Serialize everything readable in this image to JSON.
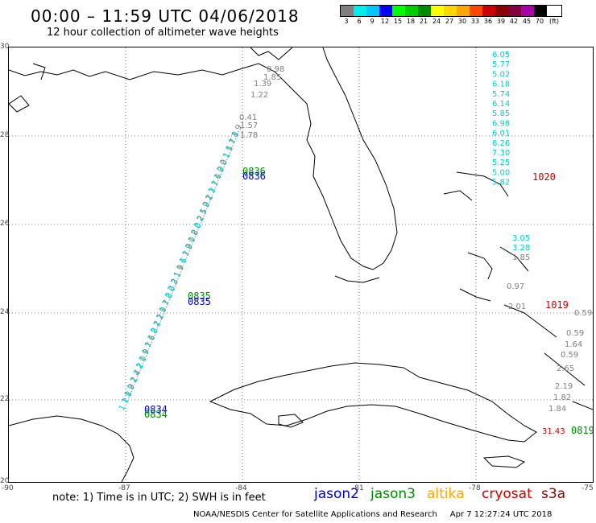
{
  "header": {
    "title": "00:00 – 11:59 UTC 04/06/2018",
    "subtitle": "12 hour collection of altimeter wave heights"
  },
  "legend": {
    "unit": "(ft)",
    "bins": [
      {
        "label": "3",
        "color": "#7f7f7f"
      },
      {
        "label": "6",
        "color": "#00eeee"
      },
      {
        "label": "9",
        "color": "#00c8ff"
      },
      {
        "label": "12",
        "color": "#0000ff"
      },
      {
        "label": "15",
        "color": "#00ff00"
      },
      {
        "label": "18",
        "color": "#00cc00"
      },
      {
        "label": "21",
        "color": "#008b00"
      },
      {
        "label": "24",
        "color": "#ffff00"
      },
      {
        "label": "27",
        "color": "#ffd700"
      },
      {
        "label": "30",
        "color": "#ffa500"
      },
      {
        "label": "33",
        "color": "#ff4500"
      },
      {
        "label": "36",
        "color": "#cc0000"
      },
      {
        "label": "39",
        "color": "#8b0000"
      },
      {
        "label": "42",
        "color": "#800040"
      },
      {
        "label": "45",
        "color": "#aa00aa"
      },
      {
        "label": "70",
        "color": "#000000"
      }
    ]
  },
  "axes": {
    "lat_ticks": [
      "30",
      "28",
      "26",
      "24",
      "22",
      "20"
    ],
    "lon_ticks": [
      "-90",
      "-87",
      "-84",
      "-81",
      "-78",
      "-75"
    ]
  },
  "east_column": {
    "values_cyan": [
      "6.05",
      "5.77",
      "5.02",
      "6.18",
      "5.74",
      "6.14",
      "5.85",
      "6.98",
      "6.01",
      "6.26",
      "7.30",
      "5.25",
      "5.00",
      "5.82"
    ],
    "mid_values": [
      "3.05",
      "3.28",
      "1.85"
    ],
    "mid_colors": [
      "#00d0d0",
      "#00d0d0",
      "#7f7f7f"
    ],
    "lower_values": [
      "0.97",
      "2.01",
      "0.59",
      "0.59",
      "1.64",
      "0.59",
      "2.65",
      "2.19",
      "1.82",
      "1.84"
    ],
    "red_value": "31.43"
  },
  "gulf_track": {
    "top_values": [
      "0.98",
      "1.85",
      "1.39",
      "1.22",
      "0.41",
      "1.57",
      "1.78"
    ],
    "track_values": [
      "1.9",
      "1.8",
      "1.7",
      "1.5",
      "2.1",
      "2.0",
      "1.9",
      "1.6",
      "1.7",
      "2.3",
      "2.1",
      "1.9",
      "2.5",
      "2.2",
      "2.0",
      "1.8",
      "2.0",
      "1.9",
      "1.7",
      "1.6",
      "1.9",
      "2.1",
      "2.3",
      "2.0",
      "1.8",
      "1.7",
      "1.9",
      "2.2",
      "2.1",
      "1.8",
      "1.6",
      "1.7",
      "1.9",
      "2.0",
      "2.2",
      "2.4",
      "2.1",
      "1.9",
      "1.8",
      "1.7"
    ],
    "track_colors_pattern": [
      "#7f7f7f",
      "#00d0d0",
      "#7f7f7f",
      "#00d0d0",
      "#00d0d0"
    ]
  },
  "time_stamps": [
    {
      "text": "0836",
      "color": "#008b00"
    },
    {
      "text": "0836",
      "color": "#0000cc"
    },
    {
      "text": "0835",
      "color": "#008b00"
    },
    {
      "text": "0835",
      "color": "#0000cc"
    },
    {
      "text": "0834",
      "color": "#0000cc"
    },
    {
      "text": "0834",
      "color": "#008b00"
    },
    {
      "text": "1020",
      "color": "#cc0000"
    },
    {
      "text": "1019",
      "color": "#cc0000"
    },
    {
      "text": "0819",
      "color": "#008b00"
    }
  ],
  "note": "note: 1) Time is in UTC; 2) SWH is in feet",
  "satellites": [
    {
      "name": "jason2",
      "color": "#0000cc"
    },
    {
      "name": "jason3",
      "color": "#008b00"
    },
    {
      "name": "altika",
      "color": "#ffa500"
    },
    {
      "name": "cryosat",
      "color": "#cc0000"
    },
    {
      "name": "s3a",
      "color": "#8b0000"
    }
  ],
  "footer": {
    "credit": "NOAA/NESDIS Center for Satellite Applications and Research",
    "date": "Apr  7 12:27:24 UTC 2018"
  }
}
